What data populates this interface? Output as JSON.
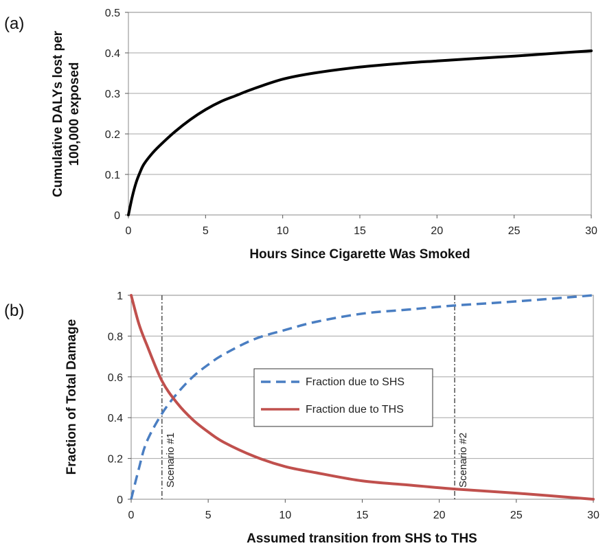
{
  "chart_data": [
    {
      "panel_label": "(a)",
      "type": "line",
      "xlabel": "Hours Since Cigarette Was Smoked",
      "ylabel": [
        "Cumulative DALYs lost per",
        "100,000 exposed"
      ],
      "xlim": [
        0,
        30
      ],
      "ylim": [
        0,
        0.5
      ],
      "xticks": [
        "0",
        "5",
        "10",
        "15",
        "20",
        "25",
        "30"
      ],
      "yticks": [
        "0",
        "0.1",
        "0.2",
        "0.3",
        "0.4",
        "0.5"
      ],
      "grid": "horizontal",
      "series": [
        {
          "color": "#000000",
          "style": "solid",
          "x": [
            0,
            0.25,
            0.5,
            0.75,
            1,
            1.5,
            2,
            3,
            4,
            5,
            6,
            7,
            8,
            10,
            12,
            15,
            18,
            20,
            22,
            25,
            28,
            30
          ],
          "y": [
            0,
            0.045,
            0.08,
            0.105,
            0.125,
            0.15,
            0.17,
            0.205,
            0.235,
            0.26,
            0.28,
            0.295,
            0.31,
            0.335,
            0.35,
            0.365,
            0.375,
            0.38,
            0.385,
            0.392,
            0.4,
            0.405
          ]
        }
      ]
    },
    {
      "panel_label": "(b)",
      "type": "line",
      "xlabel": "Assumed transition from SHS to THS",
      "ylabel": "Fraction of Total Damage",
      "xlim": [
        0,
        30
      ],
      "ylim": [
        0,
        1
      ],
      "xticks": [
        "0",
        "5",
        "10",
        "15",
        "20",
        "25",
        "30"
      ],
      "yticks": [
        "0",
        "0.2",
        "0.4",
        "0.6",
        "0.8",
        "1"
      ],
      "grid": "horizontal",
      "legend": "center",
      "series": [
        {
          "name": "Fraction due to SHS",
          "color": "#4a7ec2",
          "style": "dashed",
          "x": [
            0,
            0.5,
            1,
            2,
            3,
            4,
            5,
            6,
            8,
            10,
            12,
            15,
            18,
            21,
            25,
            30
          ],
          "y": [
            0,
            0.15,
            0.28,
            0.42,
            0.52,
            0.6,
            0.66,
            0.71,
            0.785,
            0.83,
            0.87,
            0.91,
            0.93,
            0.95,
            0.97,
            1
          ]
        },
        {
          "name": "Fraction due to THS",
          "color": "#c0504d",
          "style": "solid",
          "x": [
            0,
            0.5,
            1,
            2,
            3,
            4,
            5,
            6,
            8,
            10,
            12,
            15,
            18,
            21,
            25,
            30
          ],
          "y": [
            1,
            0.86,
            0.76,
            0.58,
            0.47,
            0.39,
            0.33,
            0.28,
            0.21,
            0.16,
            0.13,
            0.09,
            0.07,
            0.05,
            0.03,
            0
          ]
        }
      ],
      "reference_lines": [
        {
          "x": 2,
          "label": "Scenario #1"
        },
        {
          "x": 21,
          "label": "Scenario #2"
        }
      ]
    }
  ]
}
